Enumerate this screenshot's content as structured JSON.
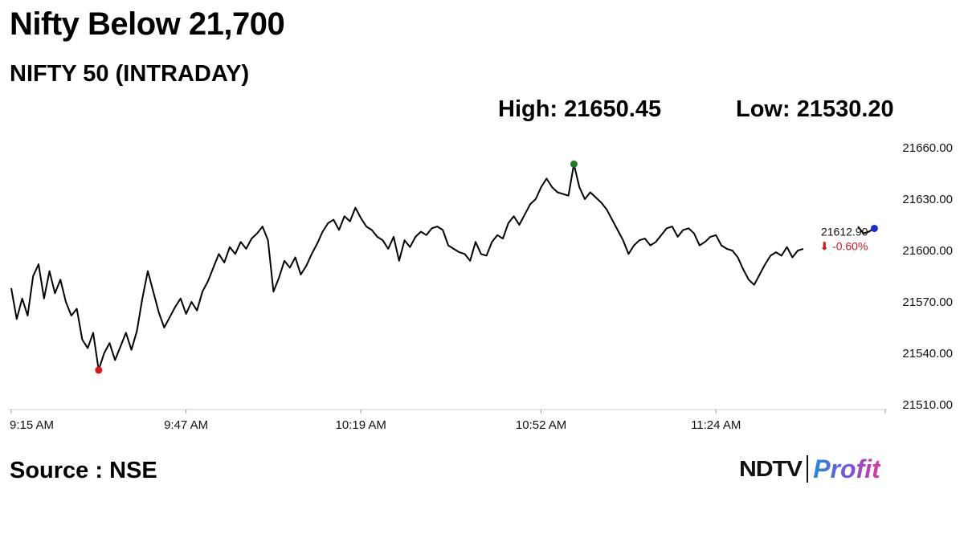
{
  "headline": "Nifty Below 21,700",
  "subtitle": "NIFTY 50 (INTRADAY)",
  "high_text": "High: 21650.45",
  "low_text": "Low: 21530.20",
  "source": "Source : NSE",
  "brand": {
    "left": "NDTV",
    "right": "Profit"
  },
  "colors": {
    "line": "#000000",
    "high_marker": "#1a7f1a",
    "low_marker": "#e0141e",
    "last_marker": "#1a2fd6",
    "negative": "#d0161d",
    "axis": "#dddddd"
  },
  "chart_data": {
    "type": "line",
    "title": "NIFTY 50 (INTRADAY)",
    "x_ticks": [
      "9:15 AM",
      "9:47 AM",
      "10:19 AM",
      "10:52 AM",
      "11:24 AM"
    ],
    "y_ticks": [
      "21660.00",
      "21630.00",
      "21600.00",
      "21570.00",
      "21540.00",
      "21510.00"
    ],
    "ylim": [
      21510,
      21660
    ],
    "grid": false,
    "high": {
      "time": "10:58 AM",
      "value": 21650.45
    },
    "low": {
      "time": "9:31 AM",
      "value": 21530.2
    },
    "last": {
      "time": "11:53 AM",
      "value": 21612.9,
      "value_label": "21612.90",
      "change_label": "-0.60%",
      "change_arrow": "⬇"
    },
    "series": [
      {
        "points": [
          [
            "9:15 AM",
            21578
          ],
          [
            "9:16 AM",
            21560
          ],
          [
            "9:17 AM",
            21572
          ],
          [
            "9:18 AM",
            21562
          ],
          [
            "9:19 AM",
            21585
          ],
          [
            "9:20 AM",
            21592
          ],
          [
            "9:21 AM",
            21572
          ],
          [
            "9:22 AM",
            21588
          ],
          [
            "9:23 AM",
            21575
          ],
          [
            "9:24 AM",
            21583
          ],
          [
            "9:25 AM",
            21570
          ],
          [
            "9:26 AM",
            21562
          ],
          [
            "9:27 AM",
            21566
          ],
          [
            "9:28 AM",
            21548
          ],
          [
            "9:29 AM",
            21543
          ],
          [
            "9:30 AM",
            21552
          ],
          [
            "9:31 AM",
            21530.2
          ],
          [
            "9:32 AM",
            21540
          ],
          [
            "9:33 AM",
            21546
          ],
          [
            "9:34 AM",
            21536
          ],
          [
            "9:35 AM",
            21544
          ],
          [
            "9:36 AM",
            21552
          ],
          [
            "9:37 AM",
            21542
          ],
          [
            "9:38 AM",
            21553
          ],
          [
            "9:39 AM",
            21572
          ],
          [
            "9:40 AM",
            21588
          ],
          [
            "9:41 AM",
            21576
          ],
          [
            "9:42 AM",
            21564
          ],
          [
            "9:43 AM",
            21555
          ],
          [
            "9:44 AM",
            21561
          ],
          [
            "9:45 AM",
            21567
          ],
          [
            "9:46 AM",
            21572
          ],
          [
            "9:47 AM",
            21563
          ],
          [
            "9:48 AM",
            21570
          ],
          [
            "9:49 AM",
            21565
          ],
          [
            "9:50 AM",
            21576
          ],
          [
            "9:51 AM",
            21582
          ],
          [
            "9:52 AM",
            21590
          ],
          [
            "9:53 AM",
            21598
          ],
          [
            "9:54 AM",
            21593
          ],
          [
            "9:55 AM",
            21602
          ],
          [
            "9:56 AM",
            21598
          ],
          [
            "9:57 AM",
            21605
          ],
          [
            "9:58 AM",
            21601
          ],
          [
            "9:59 AM",
            21607
          ],
          [
            "10:00 AM",
            21610
          ],
          [
            "10:01 AM",
            21614
          ],
          [
            "10:02 AM",
            21606
          ],
          [
            "10:03 AM",
            21576
          ],
          [
            "10:04 AM",
            21584
          ],
          [
            "10:05 AM",
            21594
          ],
          [
            "10:06 AM",
            21590
          ],
          [
            "10:07 AM",
            21596
          ],
          [
            "10:08 AM",
            21586
          ],
          [
            "10:09 AM",
            21591
          ],
          [
            "10:10 AM",
            21598
          ],
          [
            "10:11 AM",
            21604
          ],
          [
            "10:12 AM",
            21611
          ],
          [
            "10:13 AM",
            21616
          ],
          [
            "10:14 AM",
            21618
          ],
          [
            "10:15 AM",
            21612
          ],
          [
            "10:16 AM",
            21620
          ],
          [
            "10:17 AM",
            21617
          ],
          [
            "10:18 AM",
            21625
          ],
          [
            "10:19 AM",
            21619
          ],
          [
            "10:20 AM",
            21614
          ],
          [
            "10:21 AM",
            21612
          ],
          [
            "10:22 AM",
            21608
          ],
          [
            "10:23 AM",
            21606
          ],
          [
            "10:24 AM",
            21601
          ],
          [
            "10:25 AM",
            21608
          ],
          [
            "10:26 AM",
            21594
          ],
          [
            "10:27 AM",
            21606
          ],
          [
            "10:28 AM",
            21602
          ],
          [
            "10:29 AM",
            21608
          ],
          [
            "10:30 AM",
            21611
          ],
          [
            "10:31 AM",
            21609
          ],
          [
            "10:32 AM",
            21613
          ],
          [
            "10:33 AM",
            21614
          ],
          [
            "10:34 AM",
            21612
          ],
          [
            "10:35 AM",
            21603
          ],
          [
            "10:36 AM",
            21601
          ],
          [
            "10:37 AM",
            21599
          ],
          [
            "10:38 AM",
            21598
          ],
          [
            "10:39 AM",
            21594
          ],
          [
            "10:40 AM",
            21605
          ],
          [
            "10:41 AM",
            21598
          ],
          [
            "10:42 AM",
            21597
          ],
          [
            "10:43 AM",
            21605
          ],
          [
            "10:44 AM",
            21609
          ],
          [
            "10:45 AM",
            21607
          ],
          [
            "10:46 AM",
            21616
          ],
          [
            "10:47 AM",
            21620
          ],
          [
            "10:48 AM",
            21615
          ],
          [
            "10:49 AM",
            21621
          ],
          [
            "10:50 AM",
            21627
          ],
          [
            "10:51 AM",
            21630
          ],
          [
            "10:52 AM",
            21637
          ],
          [
            "10:53 AM",
            21642
          ],
          [
            "10:54 AM",
            21637
          ],
          [
            "10:55 AM",
            21634
          ],
          [
            "10:56 AM",
            21633
          ],
          [
            "10:57 AM",
            21632
          ],
          [
            "10:58 AM",
            21650.45
          ],
          [
            "10:59 AM",
            21637
          ],
          [
            "11:00 AM",
            21630
          ],
          [
            "11:01 AM",
            21634
          ],
          [
            "11:02 AM",
            21631
          ],
          [
            "11:03 AM",
            21628
          ],
          [
            "11:04 AM",
            21624
          ],
          [
            "11:05 AM",
            21618
          ],
          [
            "11:06 AM",
            21612
          ],
          [
            "11:07 AM",
            21606
          ],
          [
            "11:08 AM",
            21598
          ],
          [
            "11:09 AM",
            21603
          ],
          [
            "11:10 AM",
            21606
          ],
          [
            "11:11 AM",
            21607
          ],
          [
            "11:12 AM",
            21603
          ],
          [
            "11:13 AM",
            21605
          ],
          [
            "11:14 AM",
            21609
          ],
          [
            "11:15 AM",
            21613
          ],
          [
            "11:16 AM",
            21614
          ],
          [
            "11:17 AM",
            21608
          ],
          [
            "11:18 AM",
            21612
          ],
          [
            "11:19 AM",
            21613
          ],
          [
            "11:20 AM",
            21610
          ],
          [
            "11:21 AM",
            21603
          ],
          [
            "11:22 AM",
            21605
          ],
          [
            "11:23 AM",
            21608
          ],
          [
            "11:24 AM",
            21609
          ],
          [
            "11:25 AM",
            21603
          ],
          [
            "11:26 AM",
            21601
          ],
          [
            "11:27 AM",
            21600
          ],
          [
            "11:28 AM",
            21596
          ],
          [
            "11:29 AM",
            21589
          ],
          [
            "11:30 AM",
            21583
          ],
          [
            "11:31 AM",
            21580
          ],
          [
            "11:32 AM",
            21586
          ],
          [
            "11:33 AM",
            21592
          ],
          [
            "11:34 AM",
            21597
          ],
          [
            "11:35 AM",
            21599
          ],
          [
            "11:36 AM",
            21597
          ],
          [
            "11:37 AM",
            21602
          ],
          [
            "11:38 AM",
            21596
          ],
          [
            "11:39 AM",
            21600
          ],
          [
            "11:40 AM",
            21601
          ],
          [
            "11:50 AM",
            21614
          ],
          [
            "11:51 AM",
            21610
          ],
          [
            "11:52 AM",
            21611
          ],
          [
            "11:53 AM",
            21612.9
          ]
        ]
      }
    ]
  }
}
